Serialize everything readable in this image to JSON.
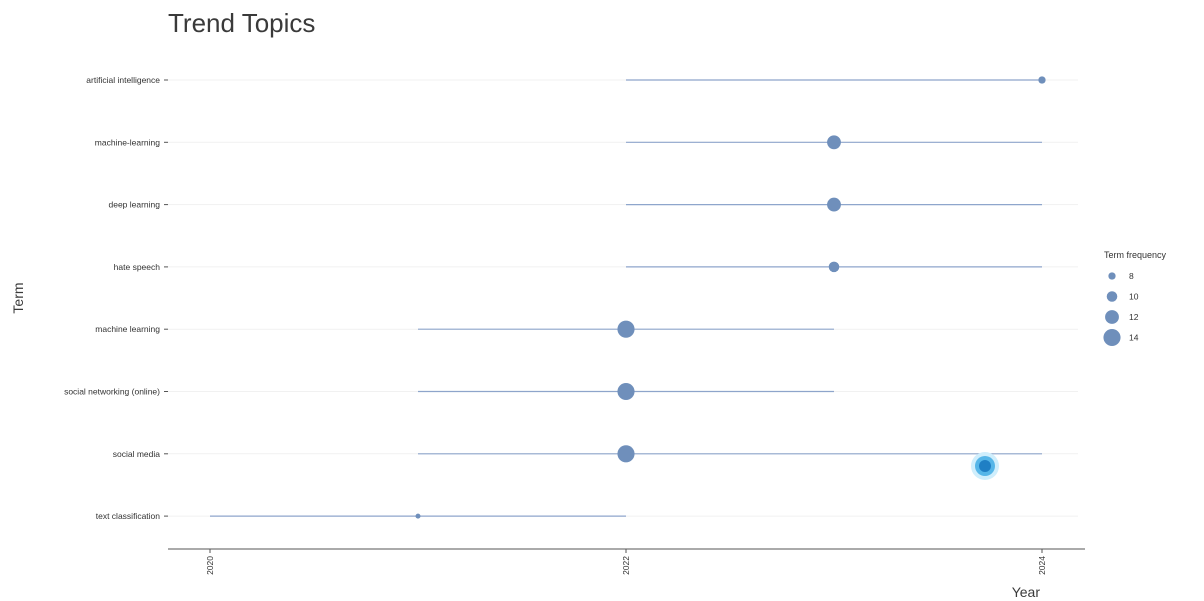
{
  "chart_data": {
    "type": "scatter",
    "title": "Trend Topics",
    "xlabel": "Year",
    "ylabel": "Term",
    "x_ticks": [
      "2020",
      "2022",
      "2024"
    ],
    "xlim": [
      2019.8,
      2024.2
    ],
    "grid": true,
    "legend": {
      "title": "Term frequency",
      "placement": "right",
      "entries": [
        {
          "label": "8",
          "value": 8
        },
        {
          "label": "10",
          "value": 10
        },
        {
          "label": "12",
          "value": 12
        },
        {
          "label": "14",
          "value": 14
        }
      ]
    },
    "colors": {
      "point": "#6f8fbb",
      "segment": "#7d98c4"
    },
    "series": [
      {
        "term": "artificial intelligence",
        "year_q1": 2022,
        "year_median": 2024,
        "year_q3": 2024,
        "frequency": 8
      },
      {
        "term": "machine-learning",
        "year_q1": 2022,
        "year_median": 2023,
        "year_q3": 2024,
        "frequency": 12
      },
      {
        "term": "deep learning",
        "year_q1": 2022,
        "year_median": 2023,
        "year_q3": 2024,
        "frequency": 12
      },
      {
        "term": "hate speech",
        "year_q1": 2022,
        "year_median": 2023,
        "year_q3": 2024,
        "frequency": 10
      },
      {
        "term": "machine learning",
        "year_q1": 2021,
        "year_median": 2022,
        "year_q3": 2023,
        "frequency": 14
      },
      {
        "term": "social networking (online)",
        "year_q1": 2021,
        "year_median": 2022,
        "year_q3": 2023,
        "frequency": 14
      },
      {
        "term": "social media",
        "year_q1": 2021,
        "year_median": 2022,
        "year_q3": 2024,
        "frequency": 14
      },
      {
        "term": "text classification",
        "year_q1": 2020,
        "year_median": 2021,
        "year_q3": 2022,
        "frequency": 6
      }
    ]
  }
}
